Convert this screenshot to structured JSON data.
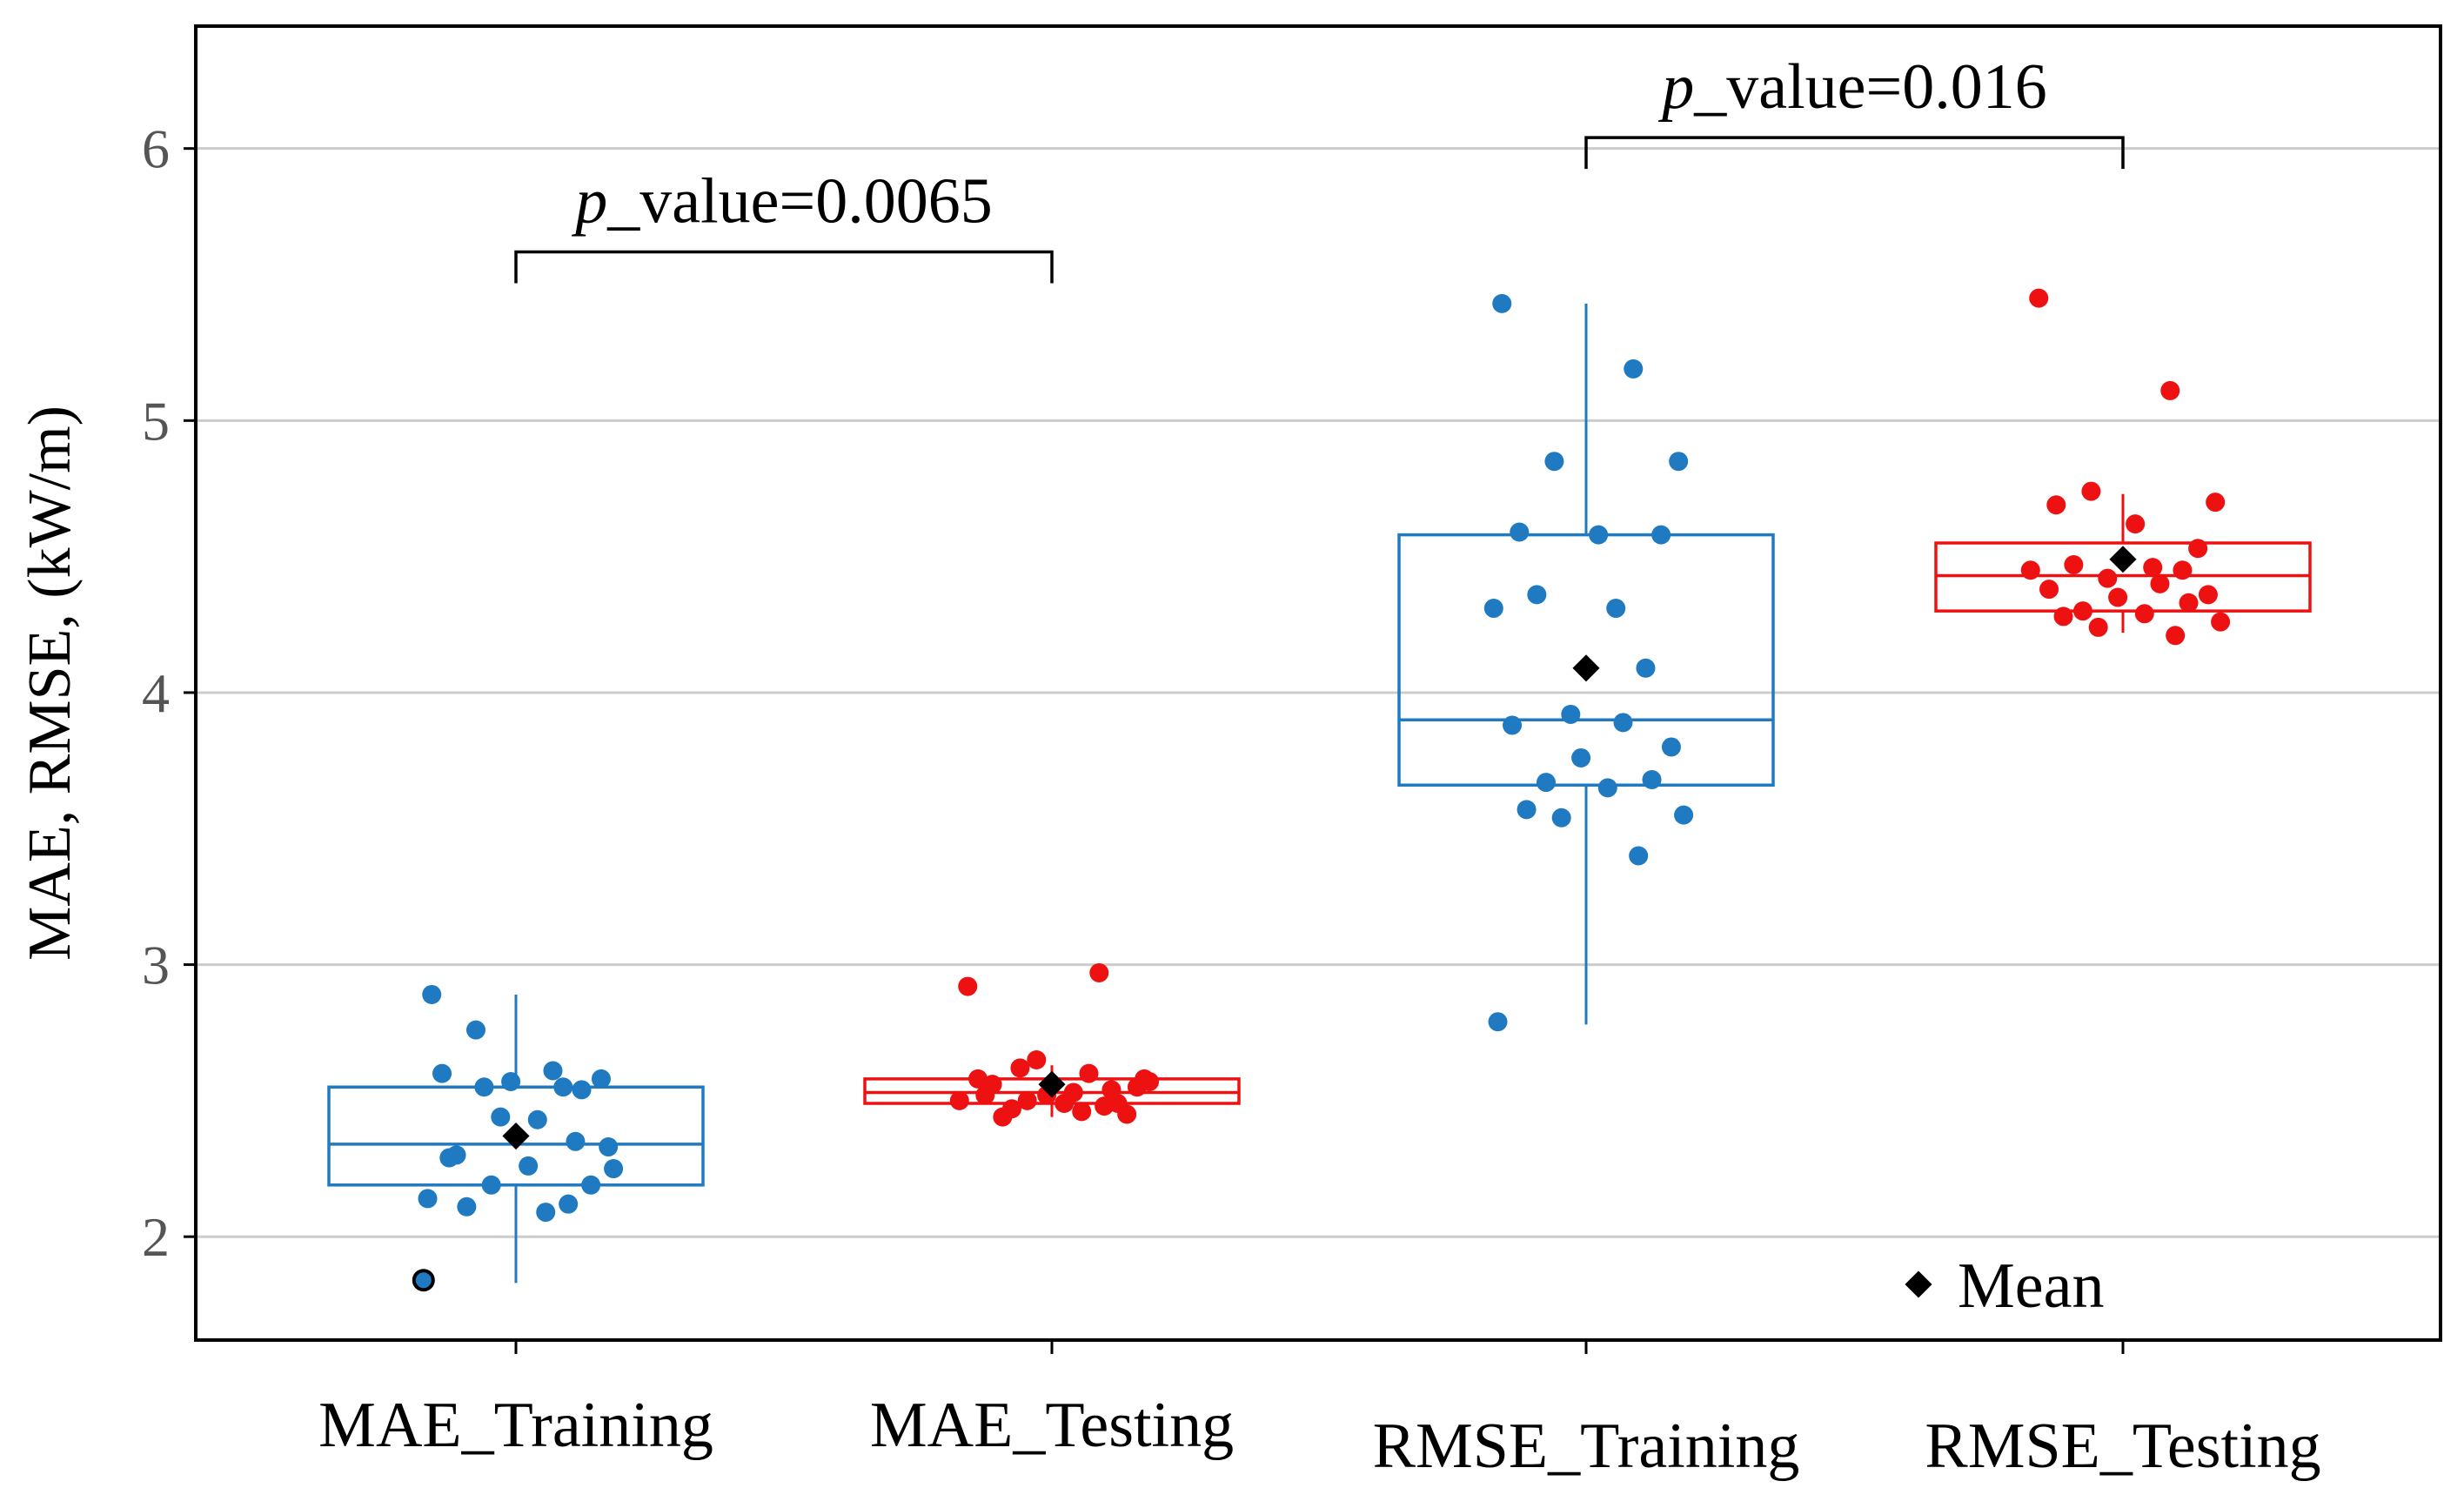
{
  "chart_data": {
    "type": "box",
    "ylabel": "MAE, RMSE, (kW/m)",
    "ylim": [
      1.62,
      6.45
    ],
    "yticks": [
      2,
      3,
      4,
      5,
      6
    ],
    "grid": "horizontal",
    "categories": [
      "MAE_Training",
      "MAE_Testing",
      "RMSE_Training",
      "RMSE_Testing"
    ],
    "series_colors": {
      "Training": "#1f7ac1",
      "Testing": "#ee1111",
      "mean_marker": "#000000"
    },
    "boxes": [
      {
        "category": "MAE_Training",
        "group": "Training",
        "whisker_low": 1.83,
        "q1": 2.19,
        "median": 2.34,
        "q3": 2.55,
        "whisker_high": 2.89,
        "mean": 2.37,
        "points": [
          2.89,
          2.55,
          2.55,
          2.33,
          2.29,
          2.26,
          2.19,
          2.11,
          2.09,
          1.84,
          2.35,
          2.44,
          2.61,
          2.6,
          2.58,
          2.57,
          2.54,
          2.76,
          2.43,
          2.3,
          2.25,
          2.19,
          2.12,
          2.14
        ]
      },
      {
        "category": "MAE_Testing",
        "group": "Testing",
        "whisker_low": 2.44,
        "q1": 2.49,
        "median": 2.53,
        "q3": 2.58,
        "whisker_high": 2.63,
        "mean": 2.56,
        "points": [
          2.92,
          2.97,
          2.62,
          2.58,
          2.52,
          2.49,
          2.45,
          2.44,
          2.46,
          2.5,
          2.54,
          2.65,
          2.6,
          2.58,
          2.55,
          2.52,
          2.49,
          2.47,
          2.53,
          2.56,
          2.57,
          2.5,
          2.48
        ]
      },
      {
        "category": "RMSE_Training",
        "group": "Training",
        "whisker_low": 2.78,
        "q1": 3.66,
        "median": 3.9,
        "q3": 4.58,
        "whisker_high": 5.43,
        "mean": 4.09,
        "points": [
          5.43,
          5.19,
          4.85,
          4.85,
          4.59,
          4.58,
          4.58,
          4.36,
          4.31,
          4.31,
          4.09,
          3.92,
          3.89,
          3.88,
          3.8,
          3.76,
          3.68,
          3.67,
          3.65,
          3.57,
          3.55,
          3.54,
          3.4,
          2.79
        ]
      },
      {
        "category": "RMSE_Testing",
        "group": "Testing",
        "whisker_low": 4.22,
        "q1": 4.3,
        "median": 4.43,
        "q3": 4.55,
        "whisker_high": 4.73,
        "mean": 4.49,
        "points": [
          5.45,
          5.11,
          4.74,
          4.7,
          4.69,
          4.62,
          4.53,
          4.47,
          4.46,
          4.45,
          4.45,
          4.42,
          4.4,
          4.38,
          4.36,
          4.35,
          4.33,
          4.3,
          4.29,
          4.28,
          4.26,
          4.24,
          4.21
        ]
      }
    ],
    "annotations": [
      {
        "text_italic": "p",
        "text": "_value=0.0065",
        "from": "MAE_Training",
        "to": "MAE_Testing",
        "y": 5.62
      },
      {
        "text_italic": "p",
        "text": "_value=0.016",
        "from": "RMSE_Training",
        "to": "RMSE_Testing",
        "y": 6.04
      }
    ],
    "legend": {
      "label": "Mean",
      "position": "bottom-right"
    }
  }
}
